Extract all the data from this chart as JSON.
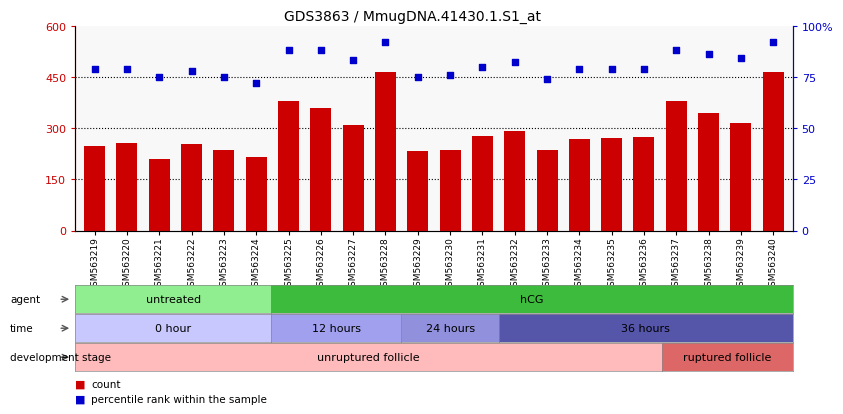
{
  "title": "GDS3863 / MmugDNA.41430.1.S1_at",
  "samples": [
    "GSM563219",
    "GSM563220",
    "GSM563221",
    "GSM563222",
    "GSM563223",
    "GSM563224",
    "GSM563225",
    "GSM563226",
    "GSM563227",
    "GSM563228",
    "GSM563229",
    "GSM563230",
    "GSM563231",
    "GSM563232",
    "GSM563233",
    "GSM563234",
    "GSM563235",
    "GSM563236",
    "GSM563237",
    "GSM563238",
    "GSM563239",
    "GSM563240"
  ],
  "counts": [
    248,
    255,
    210,
    252,
    235,
    215,
    380,
    358,
    310,
    463,
    233,
    235,
    278,
    290,
    235,
    268,
    270,
    275,
    380,
    345,
    315,
    463
  ],
  "percentiles": [
    79,
    79,
    75,
    78,
    75,
    72,
    88,
    88,
    83,
    92,
    75,
    76,
    80,
    82,
    74,
    79,
    79,
    79,
    88,
    86,
    84,
    92
  ],
  "bar_color": "#cc0000",
  "dot_color": "#0000cc",
  "ylim_left": [
    0,
    600
  ],
  "ylim_right": [
    0,
    100
  ],
  "yticks_left": [
    0,
    150,
    300,
    450,
    600
  ],
  "yticks_right": [
    0,
    25,
    50,
    75,
    100
  ],
  "ytick_labels_right": [
    "0",
    "25",
    "50",
    "75",
    "100%"
  ],
  "grid_values": [
    150,
    300,
    450
  ],
  "agent_untreated": {
    "label": "untreated",
    "start": 0,
    "end": 6,
    "color": "#90ee90"
  },
  "agent_hcg": {
    "label": "hCG",
    "start": 6,
    "end": 22,
    "color": "#3dbb3d"
  },
  "time_0h": {
    "label": "0 hour",
    "start": 0,
    "end": 6,
    "color": "#c8c8ff"
  },
  "time_12h": {
    "label": "12 hours",
    "start": 6,
    "end": 10,
    "color": "#a0a0ee"
  },
  "time_24h": {
    "label": "24 hours",
    "start": 10,
    "end": 13,
    "color": "#9090dd"
  },
  "time_36h": {
    "label": "36 hours",
    "start": 13,
    "end": 22,
    "color": "#5555aa"
  },
  "dev_unruptured": {
    "label": "unruptured follicle",
    "start": 0,
    "end": 18,
    "color": "#ffbbbb"
  },
  "dev_ruptured": {
    "label": "ruptured follicle",
    "start": 18,
    "end": 22,
    "color": "#dd6666"
  },
  "legend_count": "count",
  "legend_percentile": "percentile rank within the sample",
  "background_color": "#ffffff"
}
